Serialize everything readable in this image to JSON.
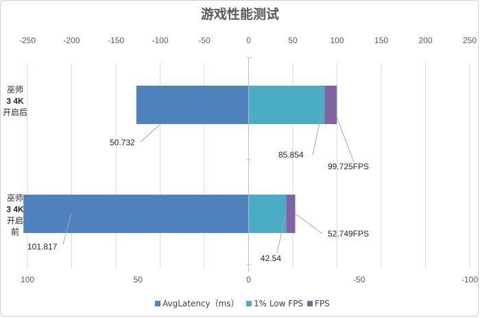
{
  "chart_data": {
    "type": "bar",
    "orientation": "horizontal",
    "title": "游戏性能测试",
    "categories": [
      {
        "lines": [
          "巫师",
          "3 4K",
          "开启",
          "前"
        ]
      },
      {
        "lines": [
          "巫师",
          "3 4K",
          "开启后"
        ]
      }
    ],
    "top_axis": {
      "ticks": [
        "-250",
        "-200",
        "-150",
        "-100",
        "-50",
        "0",
        "50",
        "100",
        "150",
        "200",
        "250"
      ],
      "range": [
        -250,
        250
      ]
    },
    "bottom_axis": {
      "ticks": [
        "100",
        "50",
        "0",
        "-50",
        "-100"
      ],
      "range": [
        100,
        -100
      ]
    },
    "grid": true,
    "legend_position": "bottom",
    "series": [
      {
        "name": "AvgLatency（ms）",
        "axis": "bottom",
        "values": [
          101.817,
          50.732
        ],
        "labels": [
          "101.817",
          "50.732"
        ],
        "color": "#4f81bd"
      },
      {
        "name": "1% Low FPS",
        "axis": "top",
        "values": [
          42.54,
          85.854
        ],
        "labels": [
          "42.54",
          "85.854"
        ],
        "color": "#4bacc6"
      },
      {
        "name": "FPS",
        "axis": "top",
        "values": [
          52.749,
          99.725
        ],
        "labels": [
          "52.749FPS",
          "99.725FPS"
        ],
        "color": "#8064a2",
        "stacked_total": true
      }
    ]
  }
}
